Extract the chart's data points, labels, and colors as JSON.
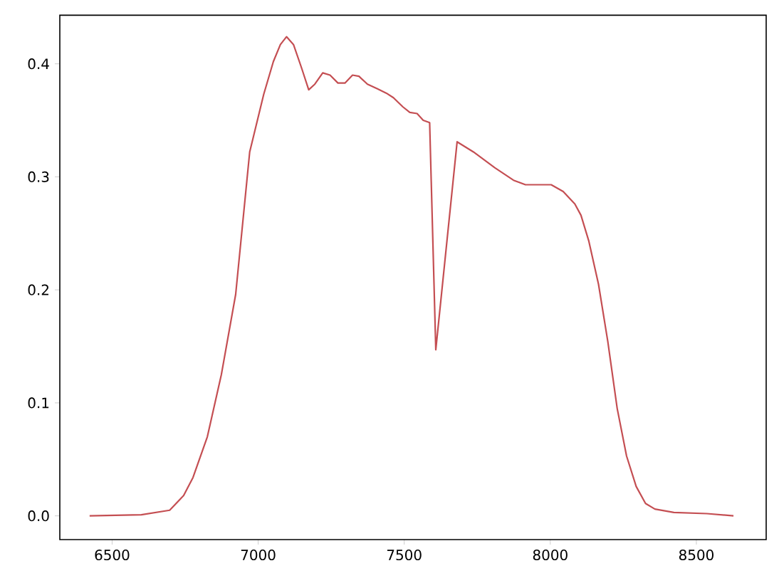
{
  "chart_data": {
    "type": "line",
    "x": [
      6423,
      6600,
      6697,
      6745,
      6777,
      6826,
      6874,
      6923,
      6971,
      7019,
      7052,
      7076,
      7097,
      7121,
      7149,
      7173,
      7194,
      7221,
      7246,
      7273,
      7297,
      7323,
      7345,
      7374,
      7407,
      7439,
      7463,
      7495,
      7519,
      7544,
      7565,
      7587,
      7608,
      7681,
      7737,
      7810,
      7874,
      7915,
      7963,
      8003,
      8044,
      8084,
      8105,
      8132,
      8165,
      8197,
      8229,
      8261,
      8294,
      8326,
      8358,
      8423,
      8536,
      8627
    ],
    "series": [
      {
        "color": "#c44e52",
        "values": [
          0.0,
          0.001,
          0.005,
          0.018,
          0.034,
          0.07,
          0.125,
          0.196,
          0.322,
          0.373,
          0.402,
          0.417,
          0.424,
          0.417,
          0.396,
          0.377,
          0.382,
          0.392,
          0.39,
          0.383,
          0.383,
          0.39,
          0.389,
          0.382,
          0.378,
          0.374,
          0.37,
          0.362,
          0.357,
          0.356,
          0.35,
          0.348,
          0.147,
          0.331,
          0.322,
          0.308,
          0.297,
          0.293,
          0.293,
          0.293,
          0.287,
          0.276,
          0.266,
          0.243,
          0.205,
          0.154,
          0.095,
          0.053,
          0.026,
          0.011,
          0.006,
          0.003,
          0.002,
          0.0
        ]
      }
    ],
    "xlim": [
      6321,
      8739
    ],
    "ylim": [
      -0.021,
      0.443
    ],
    "xticks": [
      6500,
      7000,
      7500,
      8000,
      8500
    ],
    "yticks": [
      {
        "value": 0,
        "label": "0.0"
      },
      {
        "value": 0.1,
        "label": "0.1"
      },
      {
        "value": 0.2,
        "label": "0.2"
      },
      {
        "value": 0.3,
        "label": "0.3"
      },
      {
        "value": 0.4,
        "label": "0.4"
      }
    ],
    "marker": "none",
    "line_style": "solid"
  }
}
